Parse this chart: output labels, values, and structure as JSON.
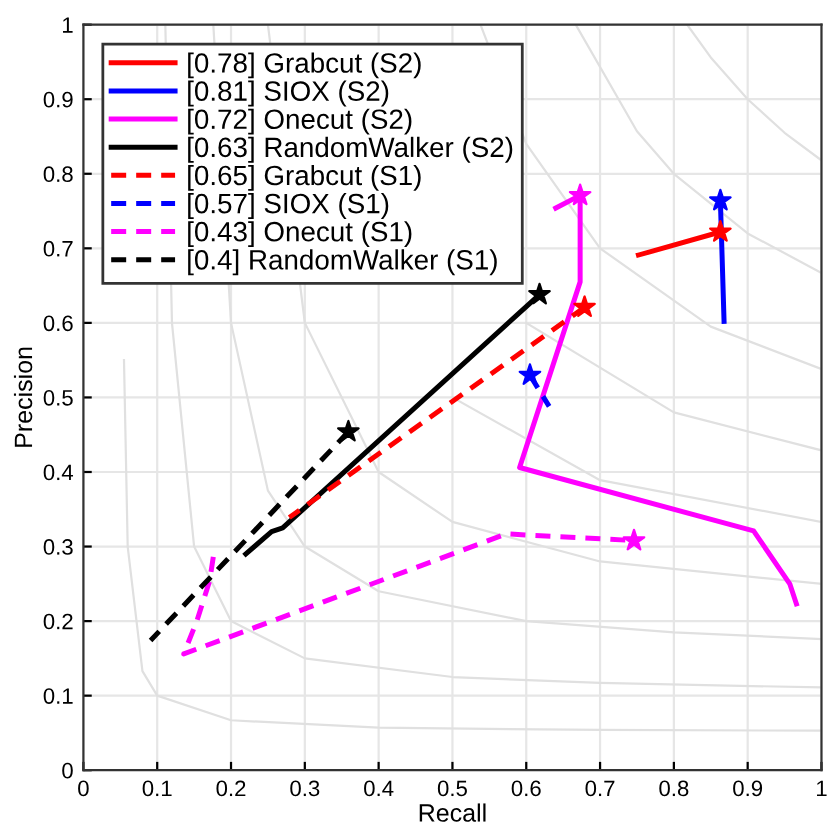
{
  "chart_data": {
    "type": "line",
    "xlabel": "Recall",
    "ylabel": "Precision",
    "xlim": [
      0,
      1
    ],
    "ylim": [
      0,
      1
    ],
    "xticks": [
      0,
      0.1,
      0.2,
      0.3,
      0.4,
      0.5,
      0.6,
      0.7,
      0.8,
      0.9,
      1
    ],
    "yticks": [
      0,
      0.1,
      0.2,
      0.3,
      0.4,
      0.5,
      0.6,
      0.7,
      0.8,
      0.9,
      1
    ],
    "grid": true,
    "legend": "top left",
    "series": [
      {
        "color": "#e0e0e0",
        "line_style": "solid",
        "marker": "none",
        "x": [
          0.055,
          0.06,
          0.08,
          0.1,
          0.2,
          0.4,
          0.7,
          1
        ],
        "values": [
          0.55,
          0.3,
          0.133,
          0.1,
          0.067,
          0.057,
          0.054,
          0.053
        ]
      },
      {
        "color": "#e0e0e0",
        "line_style": "solid",
        "marker": "none",
        "x": [
          0.111,
          0.12,
          0.15,
          0.2,
          0.3,
          0.5,
          0.7,
          1
        ],
        "values": [
          1,
          0.6,
          0.3,
          0.2,
          0.15,
          0.125,
          0.117,
          0.111
        ]
      },
      {
        "color": "#e0e0e0",
        "line_style": "solid",
        "marker": "none",
        "x": [
          0.176,
          0.2,
          0.25,
          0.3,
          0.4,
          0.6,
          0.8,
          1
        ],
        "values": [
          1,
          0.6,
          0.375,
          0.3,
          0.24,
          0.2,
          0.185,
          0.176
        ]
      },
      {
        "color": "#e0e0e0",
        "line_style": "solid",
        "marker": "none",
        "x": [
          0.25,
          0.3,
          0.4,
          0.5,
          0.7,
          1
        ],
        "values": [
          1,
          0.6,
          0.4,
          0.333,
          0.28,
          0.25
        ]
      },
      {
        "color": "#e0e0e0",
        "line_style": "solid",
        "marker": "none",
        "x": [
          0.5,
          0.7,
          1
        ],
        "values": [
          0.5,
          0.389,
          0.333
        ]
      },
      {
        "color": "#e0e0e0",
        "line_style": "solid",
        "marker": "none",
        "x": [
          0.6,
          0.8,
          1
        ],
        "values": [
          0.6,
          0.48,
          0.429
        ]
      },
      {
        "color": "#e0e0e0",
        "line_style": "solid",
        "marker": "none",
        "x": [
          0.538,
          0.6,
          0.7,
          0.85,
          1
        ],
        "values": [
          1,
          0.84,
          0.7,
          0.595,
          0.538
        ]
      },
      {
        "color": "#e0e0e0",
        "line_style": "solid",
        "marker": "none",
        "x": [
          0.667,
          0.75,
          0.8,
          0.9,
          1
        ],
        "values": [
          1,
          0.857,
          0.8,
          0.72,
          0.667
        ]
      },
      {
        "color": "#e0e0e0",
        "line_style": "solid",
        "marker": "none",
        "x": [
          0.818,
          0.85,
          0.9,
          0.95,
          1
        ],
        "values": [
          1,
          0.956,
          0.9,
          0.855,
          0.818
        ]
      },
      {
        "name": "[0.78] Grabcut (S2)",
        "color": "#ff0000",
        "line_style": "solid",
        "marker": "none",
        "x": [
          0.752,
          0.863
        ],
        "values": [
          0.691,
          0.722
        ]
      },
      {
        "name": "[0.81] SIOX (S2)",
        "color": "#0000ff",
        "line_style": "solid",
        "marker": "none",
        "x": [
          0.863,
          0.865,
          0.868
        ],
        "values": [
          0.764,
          0.7,
          0.602
        ]
      },
      {
        "name": "[0.72] Onecut (S2)",
        "color": "#ff00ff",
        "line_style": "solid",
        "marker": "none",
        "x": [
          0.64,
          0.673,
          0.673,
          0.591,
          0.908,
          0.957,
          0.966
        ],
        "values": [
          0.754,
          0.771,
          0.655,
          0.406,
          0.321,
          0.25,
          0.223
        ]
      },
      {
        "name": "[0.63] RandomWalker (S2)",
        "color": "#000000",
        "line_style": "solid",
        "marker": "none",
        "x": [
          0.618,
          0.27,
          0.255,
          0.22
        ],
        "values": [
          0.638,
          0.325,
          0.32,
          0.29
        ]
      },
      {
        "name": "[0.65] Grabcut (S1)",
        "color": "#ff0000",
        "line_style": "dashed",
        "marker": "none",
        "x": [
          0.679,
          0.279
        ],
        "values": [
          0.621,
          0.339
        ]
      },
      {
        "name": "[0.57] SIOX (S1)",
        "color": "#0000ff",
        "line_style": "dashed",
        "marker": "none",
        "x": [
          0.605,
          0.631
        ],
        "values": [
          0.53,
          0.488
        ]
      },
      {
        "name": "[0.43] Onecut (S1)",
        "color": "#ff00ff",
        "line_style": "dashed",
        "marker": "none",
        "x": [
          0.176,
          0.171,
          0.154,
          0.136,
          0.573,
          0.746
        ],
        "values": [
          0.286,
          0.254,
          0.201,
          0.156,
          0.317,
          0.308
        ]
      },
      {
        "name": "[0.4] RandomWalker (S1)",
        "color": "#000000",
        "line_style": "dashed",
        "marker": "none",
        "x": [
          0.359,
          0.091
        ],
        "values": [
          0.454,
          0.174
        ]
      },
      {
        "type": "scatter",
        "marker": "star",
        "x": [
          0.863,
          0.863,
          0.673,
          0.618,
          0.679,
          0.605,
          0.746,
          0.359
        ],
        "values": [
          0.722,
          0.764,
          0.771,
          0.638,
          0.621,
          0.53,
          0.308,
          0.454
        ],
        "colors": [
          "#ff0000",
          "#0000ff",
          "#ff00ff",
          "#000000",
          "#ff0000",
          "#0000ff",
          "#ff00ff",
          "#000000"
        ]
      }
    ]
  }
}
